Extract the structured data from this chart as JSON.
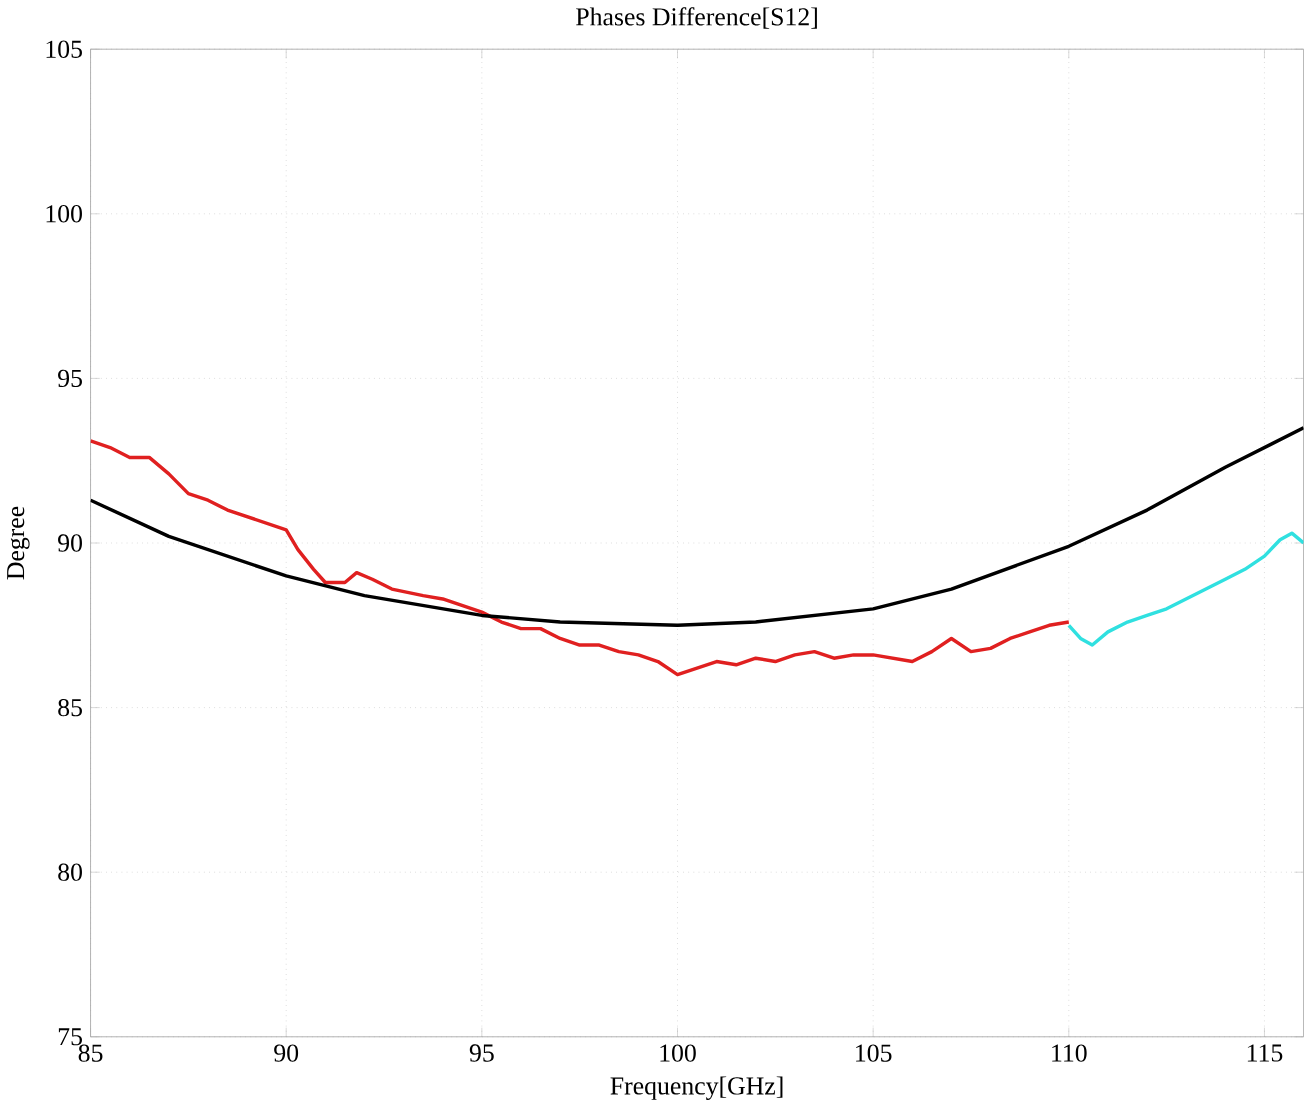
{
  "chart_data": {
    "type": "line",
    "title": "Phases Difference[S12]",
    "xlabel": "Frequency[GHz]",
    "ylabel": "Degree",
    "xlim": [
      85,
      116
    ],
    "ylim": [
      75,
      105
    ],
    "xticks": [
      85,
      90,
      95,
      100,
      105,
      110,
      115
    ],
    "yticks": [
      75,
      80,
      85,
      90,
      95,
      100,
      105
    ],
    "grid": true,
    "marker": "none",
    "line_style": "solid",
    "series": [
      {
        "color": "#e02020",
        "x": [
          85,
          85.5,
          86,
          86.5,
          87,
          87.5,
          88,
          88.5,
          89,
          89.5,
          90,
          90.3,
          90.7,
          91,
          91.5,
          91.8,
          92.2,
          92.7,
          93.5,
          94,
          95,
          95.5,
          96,
          96.5,
          97,
          97.5,
          98,
          98.5,
          99,
          99.5,
          100,
          100.5,
          101,
          101.5,
          102,
          102.5,
          103,
          103.5,
          104,
          104.5,
          105,
          105.5,
          106,
          106.5,
          107,
          107.5,
          108,
          108.5,
          109,
          109.5,
          110
        ],
        "values": [
          93.1,
          92.9,
          92.6,
          92.6,
          92.1,
          91.5,
          91.3,
          91.0,
          90.8,
          90.6,
          90.4,
          89.8,
          89.2,
          88.8,
          88.8,
          89.1,
          88.9,
          88.6,
          88.4,
          88.3,
          87.9,
          87.6,
          87.4,
          87.4,
          87.1,
          86.9,
          86.9,
          86.7,
          86.6,
          86.4,
          86.0,
          86.2,
          86.4,
          86.3,
          86.5,
          86.4,
          86.6,
          86.7,
          86.5,
          86.6,
          86.6,
          86.5,
          86.4,
          86.7,
          87.1,
          86.7,
          86.8,
          87.1,
          87.3,
          87.5,
          87.6
        ]
      },
      {
        "color": "#30e0e0",
        "x": [
          110,
          110.3,
          110.6,
          111,
          111.5,
          112,
          112.5,
          113,
          113.5,
          114,
          114.5,
          115,
          115.4,
          115.7,
          116
        ],
        "values": [
          87.5,
          87.1,
          86.9,
          87.3,
          87.6,
          87.8,
          88.0,
          88.3,
          88.6,
          88.9,
          89.2,
          89.6,
          90.1,
          90.3,
          90.0
        ]
      },
      {
        "color": "#000000",
        "x": [
          85,
          87,
          90,
          92,
          95,
          97,
          100,
          102,
          105,
          107,
          110,
          112,
          114,
          116
        ],
        "values": [
          91.3,
          90.2,
          89.0,
          88.4,
          87.8,
          87.6,
          87.5,
          87.6,
          88.0,
          88.6,
          89.9,
          91.0,
          92.3,
          93.5
        ]
      }
    ]
  }
}
